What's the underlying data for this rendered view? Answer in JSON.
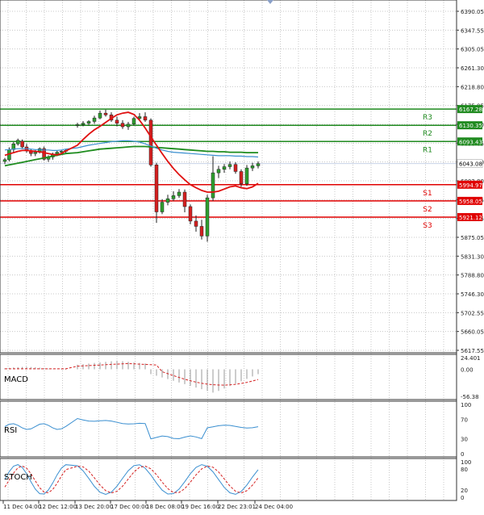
{
  "colors": {
    "background": "#ffffff",
    "grid": "#c8c8c8",
    "frame": "#333333",
    "bull_candle": "#2e9e2e",
    "bear_candle": "#d42020",
    "resistance": "#1f8a1f",
    "support": "#e00000",
    "ma_fast": "#e01010",
    "ma_mid": "#3a8fd0",
    "ma_slow": "#1e8c1e",
    "price_label": "#0a0a8a"
  },
  "chart_data": [
    {
      "type": "candlestick",
      "name": "main",
      "ylim": [
        5617.55,
        6390.05
      ],
      "y_ticks": [
        "6390.05",
        "6347.55",
        "6305.05",
        "6261.30",
        "6218.80",
        "6175.05",
        "6133.80",
        "6090.05",
        "6046.30",
        "6002.80",
        "5960.05",
        "5917.55",
        "5875.05",
        "5831.30",
        "5788.80",
        "5746.30",
        "5702.55",
        "5660.05",
        "5617.55"
      ],
      "x_ticks": [
        "11 Dec 04:00",
        "12 Dec 12:00",
        "13 Dec 20:00",
        "17 Dec 00:00",
        "18 Dec 08:00",
        "19 Dec 16:00",
        "22 Dec 23:01",
        "24 Dec 04:00"
      ],
      "current_price": "6043.08",
      "levels": [
        {
          "label": "R3",
          "value": 6167.28,
          "text": "6167.28",
          "kind": "resistance"
        },
        {
          "label": "R2",
          "value": 6130.35,
          "text": "6130.35",
          "kind": "resistance"
        },
        {
          "label": "R1",
          "value": 6093.43,
          "text": "6093.43",
          "kind": "resistance"
        },
        {
          "label": "S1",
          "value": 5994.97,
          "text": "5994.97",
          "kind": "support"
        },
        {
          "label": "S2",
          "value": 5958.05,
          "text": "5958.05",
          "kind": "support"
        },
        {
          "label": "S3",
          "value": 5921.12,
          "text": "5921.12",
          "kind": "support"
        }
      ],
      "candles": [
        {
          "o": 6048,
          "h": 6056,
          "l": 6042,
          "c": 6052
        },
        {
          "o": 6052,
          "h": 6080,
          "l": 6048,
          "c": 6075
        },
        {
          "o": 6075,
          "h": 6092,
          "l": 6068,
          "c": 6088
        },
        {
          "o": 6088,
          "h": 6100,
          "l": 6084,
          "c": 6096
        },
        {
          "o": 6094,
          "h": 6098,
          "l": 6078,
          "c": 6081
        },
        {
          "o": 6081,
          "h": 6088,
          "l": 6068,
          "c": 6072
        },
        {
          "o": 6072,
          "h": 6076,
          "l": 6060,
          "c": 6066
        },
        {
          "o": 6066,
          "h": 6074,
          "l": 6060,
          "c": 6069
        },
        {
          "o": 6069,
          "h": 6080,
          "l": 6066,
          "c": 6077
        },
        {
          "o": 6077,
          "h": 6082,
          "l": 6050,
          "c": 6053
        },
        {
          "o": 6053,
          "h": 6062,
          "l": 6047,
          "c": 6058
        },
        {
          "o": 6058,
          "h": 6068,
          "l": 6052,
          "c": 6065
        },
        {
          "o": 6065,
          "h": 6072,
          "l": 6060,
          "c": 6069
        },
        {
          "o": 6069,
          "h": 6074,
          "l": 6064,
          "c": 6071
        },
        {
          "o": 6071,
          "h": 6076,
          "l": 6066,
          "c": 6073
        },
        {
          "o": 6130,
          "h": 6136,
          "l": 6125,
          "c": 6132
        },
        {
          "o": 6132,
          "h": 6140,
          "l": 6128,
          "c": 6135
        },
        {
          "o": 6135,
          "h": 6142,
          "l": 6130,
          "c": 6139
        },
        {
          "o": 6139,
          "h": 6152,
          "l": 6134,
          "c": 6147
        },
        {
          "o": 6147,
          "h": 6164,
          "l": 6144,
          "c": 6158
        },
        {
          "o": 6158,
          "h": 6166,
          "l": 6150,
          "c": 6154
        },
        {
          "o": 6154,
          "h": 6160,
          "l": 6138,
          "c": 6142
        },
        {
          "o": 6142,
          "h": 6150,
          "l": 6128,
          "c": 6135
        },
        {
          "o": 6135,
          "h": 6142,
          "l": 6122,
          "c": 6127
        },
        {
          "o": 6127,
          "h": 6138,
          "l": 6120,
          "c": 6133
        },
        {
          "o": 6133,
          "h": 6150,
          "l": 6130,
          "c": 6146
        },
        {
          "o": 6146,
          "h": 6158,
          "l": 6140,
          "c": 6150
        },
        {
          "o": 6150,
          "h": 6160,
          "l": 6138,
          "c": 6142
        },
        {
          "o": 6142,
          "h": 6146,
          "l": 6036,
          "c": 6040
        },
        {
          "o": 6040,
          "h": 6045,
          "l": 5908,
          "c": 5933
        },
        {
          "o": 5933,
          "h": 5962,
          "l": 5928,
          "c": 5955
        },
        {
          "o": 5955,
          "h": 5972,
          "l": 5948,
          "c": 5963
        },
        {
          "o": 5963,
          "h": 5980,
          "l": 5958,
          "c": 5970
        },
        {
          "o": 5970,
          "h": 5985,
          "l": 5965,
          "c": 5978
        },
        {
          "o": 5978,
          "h": 5984,
          "l": 5932,
          "c": 5945
        },
        {
          "o": 5945,
          "h": 5950,
          "l": 5905,
          "c": 5912
        },
        {
          "o": 5912,
          "h": 5925,
          "l": 5888,
          "c": 5900
        },
        {
          "o": 5900,
          "h": 5915,
          "l": 5870,
          "c": 5878
        },
        {
          "o": 5878,
          "h": 5972,
          "l": 5865,
          "c": 5965
        },
        {
          "o": 5965,
          "h": 6060,
          "l": 5958,
          "c": 6022
        },
        {
          "o": 6022,
          "h": 6038,
          "l": 6010,
          "c": 6030
        },
        {
          "o": 6030,
          "h": 6042,
          "l": 6022,
          "c": 6036
        },
        {
          "o": 6036,
          "h": 6048,
          "l": 6030,
          "c": 6041
        },
        {
          "o": 6041,
          "h": 6046,
          "l": 6020,
          "c": 6025
        },
        {
          "o": 6025,
          "h": 6030,
          "l": 5990,
          "c": 5997
        },
        {
          "o": 5997,
          "h": 6040,
          "l": 5992,
          "c": 6033
        },
        {
          "o": 6033,
          "h": 6045,
          "l": 6026,
          "c": 6038
        },
        {
          "o": 6038,
          "h": 6048,
          "l": 6032,
          "c": 6043
        }
      ],
      "ma_fast": [
        6062,
        6065,
        6068,
        6071,
        6073,
        6073,
        6072,
        6071,
        6070,
        6068,
        6066,
        6064,
        6063,
        6066,
        6072,
        6085,
        6098,
        6110,
        6120,
        6128,
        6137,
        6146,
        6154,
        6158,
        6160,
        6155,
        6142,
        6124,
        6104,
        6085,
        6066,
        6048,
        6032,
        6018,
        6006,
        5995,
        5988,
        5982,
        5978,
        5978,
        5980,
        5985,
        5990,
        5992,
        5988,
        5986,
        5990,
        5998
      ],
      "ma_mid": [
        6074,
        6075,
        6076,
        6077,
        6077,
        6077,
        6076,
        6075,
        6075,
        6074,
        6074,
        6073,
        6073,
        6074,
        6076,
        6079,
        6082,
        6085,
        6087,
        6089,
        6091,
        6093,
        6094,
        6095,
        6095,
        6094,
        6092,
        6088,
        6083,
        6078,
        6074,
        6071,
        6069,
        6068,
        6067,
        6066,
        6065,
        6064,
        6063,
        6062,
        6061,
        6061,
        6061,
        6060,
        6060,
        6059,
        6059,
        6058
      ],
      "ma_slow": [
        6038,
        6040,
        6042,
        6044,
        6046,
        6048,
        6050,
        6052,
        6054,
        6056,
        6058,
        6060,
        6062,
        6064,
        6066,
        6068,
        6070,
        6072,
        6074,
        6076,
        6077,
        6078,
        6079,
        6080,
        6081,
        6082,
        6082,
        6082,
        6081,
        6080,
        6079,
        6078,
        6077,
        6076,
        6075,
        6074,
        6073,
        6072,
        6071,
        6071,
        6070,
        6070,
        6069,
        6069,
        6069,
        6068,
        6068,
        6068
      ]
    },
    {
      "type": "bar",
      "name": "MACD",
      "label": "MACD",
      "y_ticks": [
        "24.401",
        "0.00",
        "-56.38"
      ],
      "ylim": [
        -56.38,
        24.401
      ]
    },
    {
      "type": "line",
      "name": "RSI",
      "label": "RSI",
      "y_ticks": [
        "100",
        "70",
        "30",
        "0"
      ],
      "ylim": [
        0,
        100
      ]
    },
    {
      "type": "line",
      "name": "STOCH",
      "label": "STOCH",
      "y_ticks": [
        "100",
        "80",
        "20",
        "0"
      ],
      "ylim": [
        0,
        100
      ]
    }
  ]
}
